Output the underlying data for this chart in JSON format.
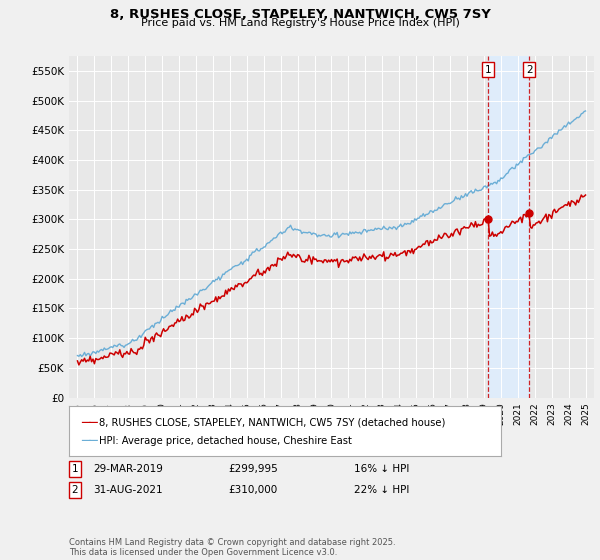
{
  "title1": "8, RUSHES CLOSE, STAPELEY, NANTWICH, CW5 7SY",
  "title2": "Price paid vs. HM Land Registry's House Price Index (HPI)",
  "legend1": "8, RUSHES CLOSE, STAPELEY, NANTWICH, CW5 7SY (detached house)",
  "legend2": "HPI: Average price, detached house, Cheshire East",
  "annotation1_label": "1",
  "annotation1_date": "29-MAR-2019",
  "annotation1_price": "£299,995",
  "annotation1_hpi": "16% ↓ HPI",
  "annotation2_label": "2",
  "annotation2_date": "31-AUG-2021",
  "annotation2_price": "£310,000",
  "annotation2_hpi": "22% ↓ HPI",
  "vline1_x": 2019.25,
  "vline2_x": 2021.67,
  "dot1_x": 2019.25,
  "dot1_y": 299995,
  "dot2_x": 2021.67,
  "dot2_y": 310000,
  "ylabel_ticks": [
    0,
    50000,
    100000,
    150000,
    200000,
    250000,
    300000,
    350000,
    400000,
    450000,
    500000,
    550000
  ],
  "ylim": [
    0,
    575000
  ],
  "xlim": [
    1994.5,
    2025.5
  ],
  "hpi_color": "#6baed6",
  "price_color": "#cc0000",
  "vline_color": "#cc0000",
  "shade_color": "#ddeeff",
  "background_color": "#f0f0f0",
  "plot_bg_color": "#e8e8e8",
  "grid_color": "#ffffff",
  "footnote": "Contains HM Land Registry data © Crown copyright and database right 2025.\nThis data is licensed under the Open Government Licence v3.0.",
  "xticks": [
    1995,
    1996,
    1997,
    1998,
    1999,
    2000,
    2001,
    2002,
    2003,
    2004,
    2005,
    2006,
    2007,
    2008,
    2009,
    2010,
    2011,
    2012,
    2013,
    2014,
    2015,
    2016,
    2017,
    2018,
    2019,
    2020,
    2021,
    2022,
    2023,
    2024,
    2025
  ]
}
